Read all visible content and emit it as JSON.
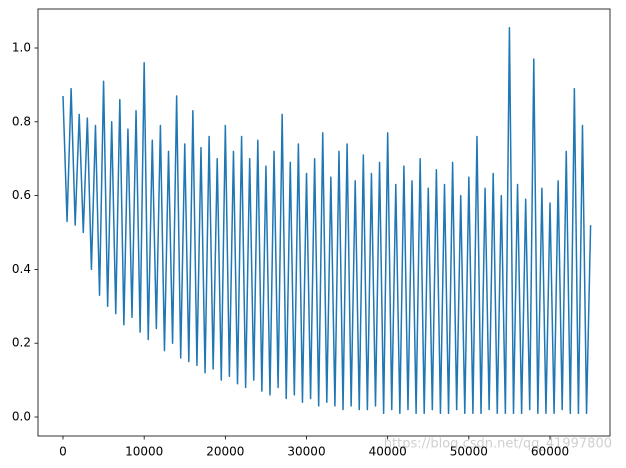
{
  "chart_data": {
    "type": "line",
    "x": [
      0,
      500,
      1000,
      1500,
      2000,
      2500,
      3000,
      3500,
      4000,
      4500,
      5000,
      5500,
      6000,
      6500,
      7000,
      7500,
      8000,
      8500,
      9000,
      9500,
      10000,
      10500,
      11000,
      11500,
      12000,
      12500,
      13000,
      13500,
      14000,
      14500,
      15000,
      15500,
      16000,
      16500,
      17000,
      17500,
      18000,
      18500,
      19000,
      19500,
      20000,
      20500,
      21000,
      21500,
      22000,
      22500,
      23000,
      23500,
      24000,
      24500,
      25000,
      25500,
      26000,
      26500,
      27000,
      27500,
      28000,
      28500,
      29000,
      29500,
      30000,
      30500,
      31000,
      31500,
      32000,
      32500,
      33000,
      33500,
      34000,
      34500,
      35000,
      35500,
      36000,
      36500,
      37000,
      37500,
      38000,
      38500,
      39000,
      39500,
      40000,
      40500,
      41000,
      41500,
      42000,
      42500,
      43000,
      43500,
      44000,
      44500,
      45000,
      45500,
      46000,
      46500,
      47000,
      47500,
      48000,
      48500,
      49000,
      49500,
      50000,
      50500,
      51000,
      51500,
      52000,
      52500,
      53000,
      53500,
      54000,
      54500,
      55000,
      55500,
      56000,
      56500,
      57000,
      57500,
      58000,
      58500,
      59000,
      59500,
      60000,
      60500,
      61000,
      61500,
      62000,
      62500,
      63000,
      63500,
      64000,
      64500,
      65000
    ],
    "series": [
      {
        "color": "#1f77b4",
        "values": [
          0.87,
          0.53,
          0.89,
          0.52,
          0.82,
          0.5,
          0.81,
          0.4,
          0.79,
          0.33,
          0.91,
          0.3,
          0.8,
          0.28,
          0.86,
          0.25,
          0.78,
          0.27,
          0.83,
          0.23,
          0.96,
          0.21,
          0.75,
          0.24,
          0.79,
          0.18,
          0.72,
          0.2,
          0.87,
          0.16,
          0.74,
          0.15,
          0.83,
          0.14,
          0.73,
          0.12,
          0.76,
          0.13,
          0.7,
          0.1,
          0.79,
          0.11,
          0.72,
          0.09,
          0.76,
          0.08,
          0.7,
          0.1,
          0.75,
          0.07,
          0.68,
          0.06,
          0.72,
          0.08,
          0.82,
          0.05,
          0.69,
          0.06,
          0.74,
          0.04,
          0.66,
          0.05,
          0.7,
          0.03,
          0.77,
          0.04,
          0.65,
          0.03,
          0.72,
          0.02,
          0.74,
          0.03,
          0.64,
          0.02,
          0.71,
          0.02,
          0.66,
          0.03,
          0.69,
          0.01,
          0.77,
          0.02,
          0.63,
          0.01,
          0.68,
          0.02,
          0.64,
          0.01,
          0.7,
          0.01,
          0.62,
          0.02,
          0.67,
          0.01,
          0.63,
          0.01,
          0.69,
          0.02,
          0.6,
          0.01,
          0.65,
          0.01,
          0.76,
          0.01,
          0.62,
          0.02,
          0.66,
          0.01,
          0.6,
          0.01,
          1.055,
          0.01,
          0.63,
          0.01,
          0.59,
          0.02,
          0.97,
          0.01,
          0.62,
          0.01,
          0.58,
          0.01,
          0.64,
          0.02,
          0.72,
          0.01,
          0.89,
          0.01,
          0.79,
          0.01,
          0.52
        ]
      }
    ],
    "xlim": [
      -3080,
      67390
    ],
    "xticks": [
      0,
      10000,
      20000,
      30000,
      40000,
      50000,
      60000
    ],
    "ylim": [
      -0.0515,
      1.1057
    ],
    "yticks": [
      {
        "value": 0,
        "label": "0.0"
      },
      {
        "value": 0.2,
        "label": "0.2"
      },
      {
        "value": 0.4,
        "label": "0.4"
      },
      {
        "value": 0.6,
        "label": "0.6"
      },
      {
        "value": 0.8,
        "label": "0.8"
      },
      {
        "value": 1,
        "label": "1.0"
      }
    ],
    "watermark": "https://blog.csdn.net/qq_41997800"
  }
}
